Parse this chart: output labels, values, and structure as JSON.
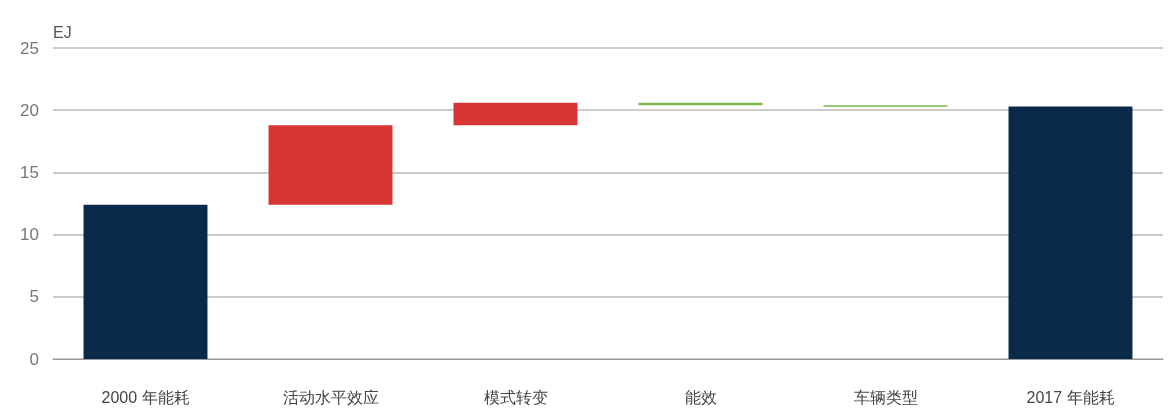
{
  "chart_data": {
    "type": "bar",
    "ylabel": "EJ",
    "categories": [
      "2000 年能耗",
      "活动水平效应",
      "模式转变",
      "能效",
      "车辆类型",
      "2017 年能耗"
    ],
    "values": [
      12.4,
      6.4,
      1.8,
      -0.2,
      -0.1,
      20.3
    ],
    "base": [
      0,
      12.4,
      18.8,
      20.6,
      20.4,
      0
    ],
    "colors": [
      "#0a2a4a",
      "#d63534",
      "#d63534",
      "#7ab648",
      "#7ab648",
      "#0a2a4a"
    ],
    "ylim": [
      0,
      25
    ],
    "yticks": [
      0,
      5,
      10,
      15,
      20,
      25
    ],
    "grid": "y"
  }
}
